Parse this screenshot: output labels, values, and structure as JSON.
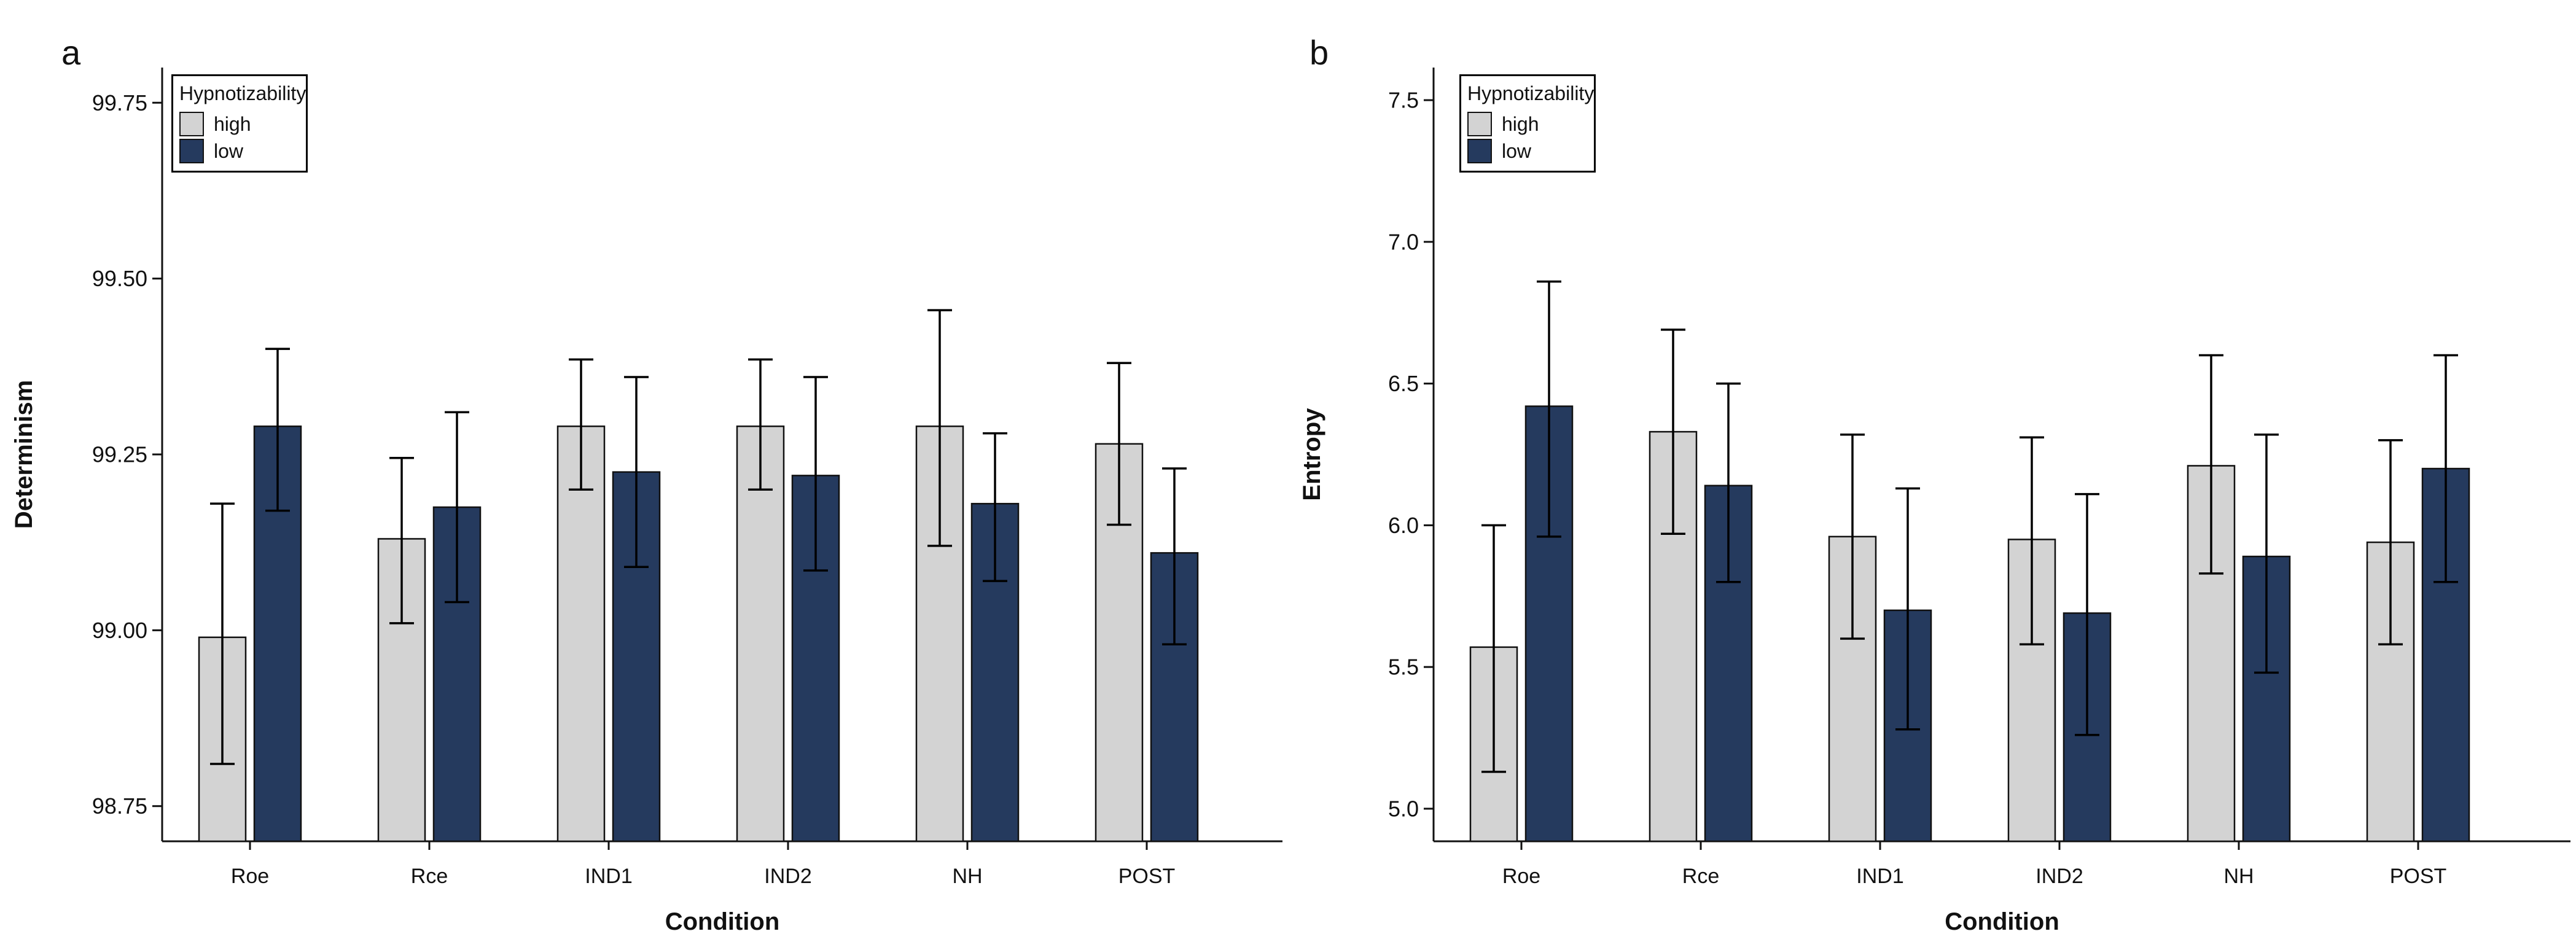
{
  "figure_colors": {
    "high": "#d3d3d3",
    "low": "#253a5e",
    "bar_border": "#111111",
    "axis": "#111111",
    "error_bar": "#000000",
    "background": "#ffffff"
  },
  "chart_data": [
    {
      "type": "bar",
      "panel_letter": "a",
      "title": "",
      "xlabel": "Condition",
      "ylabel": "Determinism",
      "categories": [
        "Roe",
        "Rce",
        "IND1",
        "IND2",
        "NH",
        "POST"
      ],
      "ylim": [
        98.7,
        99.8
      ],
      "ytick_values": [
        98.75,
        99.0,
        99.25,
        99.5,
        99.75
      ],
      "ytick_labels": [
        "98.75",
        "99.00",
        "99.25",
        "99.50",
        "99.75"
      ],
      "grid": false,
      "legend": {
        "title": "Hypnotizability",
        "position": "top-left",
        "entries": [
          "high",
          "low"
        ]
      },
      "series": [
        {
          "name": "high",
          "color": "#d3d3d3",
          "values": [
            98.99,
            99.13,
            99.29,
            99.29,
            99.29,
            99.265
          ],
          "error_low": [
            98.81,
            99.01,
            99.2,
            99.2,
            99.12,
            99.15
          ],
          "error_high": [
            99.18,
            99.245,
            99.385,
            99.385,
            99.455,
            99.38
          ]
        },
        {
          "name": "low",
          "color": "#253a5e",
          "values": [
            99.29,
            99.175,
            99.225,
            99.22,
            99.18,
            99.11
          ],
          "error_low": [
            99.17,
            99.04,
            99.09,
            99.085,
            99.07,
            98.98
          ],
          "error_high": [
            99.4,
            99.31,
            99.36,
            99.36,
            99.28,
            99.23
          ]
        }
      ]
    },
    {
      "type": "bar",
      "panel_letter": "b",
      "title": "",
      "xlabel": "Condition",
      "ylabel": "Entropy",
      "categories": [
        "Roe",
        "Rce",
        "IND1",
        "IND2",
        "NH",
        "POST"
      ],
      "ylim": [
        4.885,
        7.615
      ],
      "ytick_values": [
        5.0,
        5.5,
        6.0,
        6.5,
        7.0,
        7.5
      ],
      "ytick_labels": [
        "5.0",
        "5.5",
        "6.0",
        "6.5",
        "7.0",
        "7.5"
      ],
      "grid": false,
      "legend": {
        "title": "Hypnotizability",
        "position": "top-left",
        "entries": [
          "high",
          "low"
        ]
      },
      "series": [
        {
          "name": "high",
          "color": "#d3d3d3",
          "values": [
            5.57,
            6.33,
            5.96,
            5.95,
            6.21,
            5.94
          ],
          "error_low": [
            5.13,
            5.97,
            5.6,
            5.58,
            5.83,
            5.58
          ],
          "error_high": [
            6.0,
            6.69,
            6.32,
            6.31,
            6.6,
            6.3
          ]
        },
        {
          "name": "low",
          "color": "#253a5e",
          "values": [
            6.42,
            6.14,
            5.7,
            5.69,
            5.89,
            6.2
          ],
          "error_low": [
            5.96,
            5.8,
            5.28,
            5.26,
            5.48,
            5.8
          ],
          "error_high": [
            6.86,
            6.5,
            6.13,
            6.11,
            6.32,
            6.6
          ]
        }
      ]
    }
  ]
}
